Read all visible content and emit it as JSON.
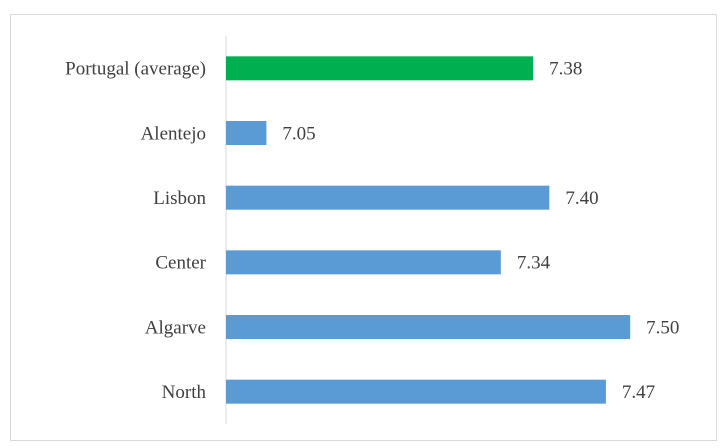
{
  "chart_data": {
    "type": "bar",
    "orientation": "horizontal",
    "categories": [
      "Portugal (average)",
      "Alentejo",
      "Lisbon",
      "Center",
      "Algarve",
      "North"
    ],
    "values": [
      7.38,
      7.05,
      7.4,
      7.34,
      7.5,
      7.47
    ],
    "value_labels": [
      "7.38",
      "7.05",
      "7.40",
      "7.34",
      "7.50",
      "7.47"
    ],
    "colors": [
      "#00b050",
      "#5b9bd5",
      "#5b9bd5",
      "#5b9bd5",
      "#5b9bd5",
      "#5b9bd5"
    ],
    "xlim": [
      7.0,
      7.6
    ]
  }
}
